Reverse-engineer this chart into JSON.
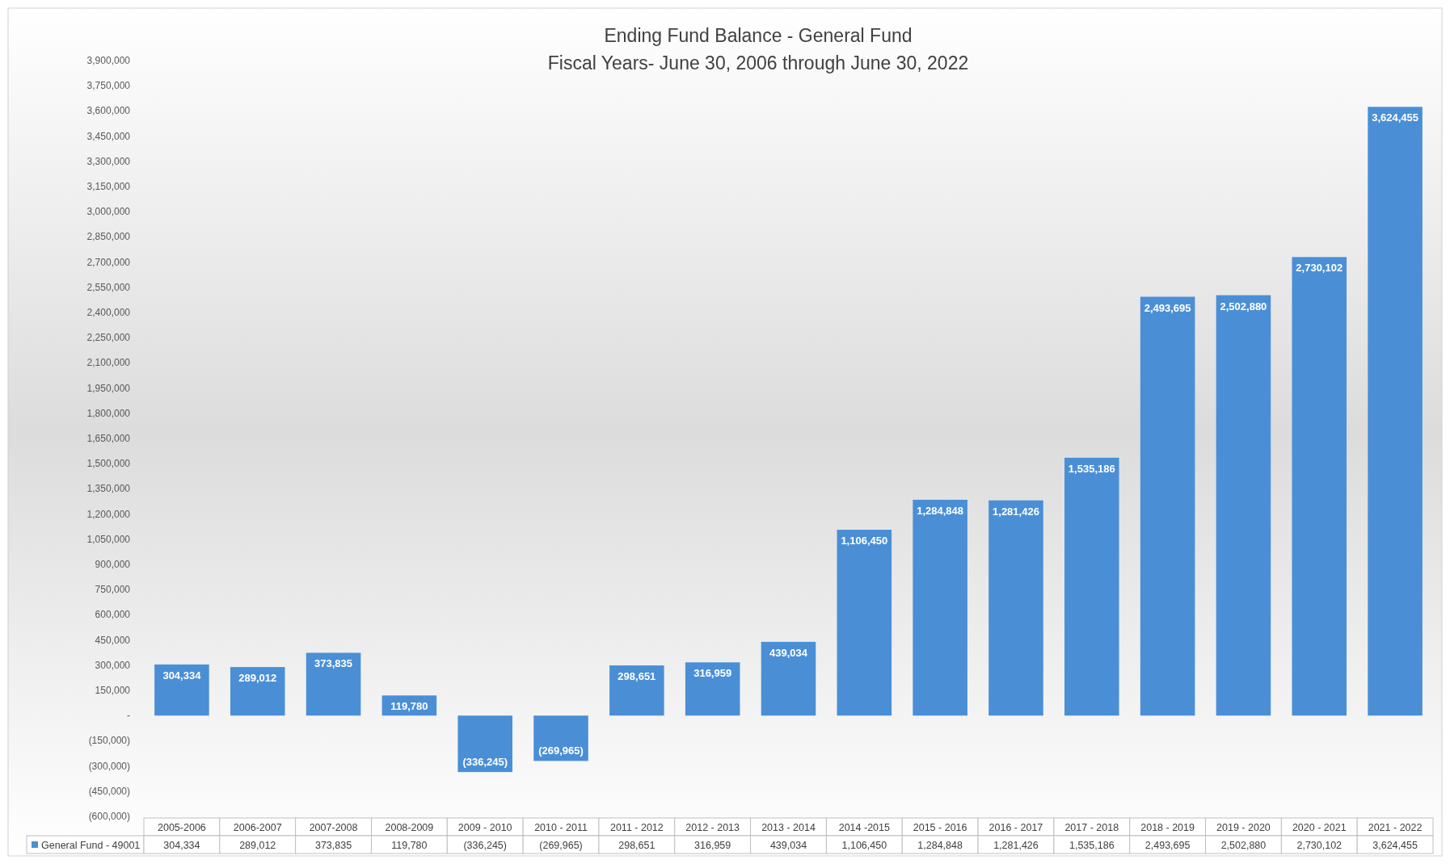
{
  "chart_data": {
    "type": "bar",
    "title": "Ending Fund Balance - General Fund",
    "subtitle": "Fiscal Years- June 30, 2006 through June 30, 2022",
    "categories": [
      "2005-2006",
      "2006-2007",
      "2007-2008",
      "2008-2009",
      "2009 - 2010",
      "2010 - 2011",
      "2011 - 2012",
      "2012 - 2013",
      "2013 - 2014",
      "2014 -2015",
      "2015 - 2016",
      "2016 - 2017",
      "2017 - 2018",
      "2018 - 2019",
      "2019 - 2020",
      "2020 - 2021",
      "2021 - 2022"
    ],
    "series": [
      {
        "name": "General Fund - 49001",
        "color": "#4a8fd6",
        "values": [
          304334,
          289012,
          373835,
          119780,
          -336245,
          -269965,
          298651,
          316959,
          439034,
          1106450,
          1284848,
          1281426,
          1535186,
          2493695,
          2502880,
          2730102,
          3624455
        ],
        "value_labels": [
          "304,334",
          "289,012",
          "373,835",
          "119,780",
          "(336,245)",
          "(269,965)",
          "298,651",
          "316,959",
          "439,034",
          "1,106,450",
          "1,284,848",
          "1,281,426",
          "1,535,186",
          "2,493,695",
          "2,502,880",
          "2,730,102",
          "3,624,455"
        ]
      }
    ],
    "ylim": [
      -600000,
      3900000
    ],
    "yticks": [
      {
        "value": 3900000,
        "label": "3,900,000"
      },
      {
        "value": 3750000,
        "label": "3,750,000"
      },
      {
        "value": 3600000,
        "label": "3,600,000"
      },
      {
        "value": 3450000,
        "label": "3,450,000"
      },
      {
        "value": 3300000,
        "label": "3,300,000"
      },
      {
        "value": 3150000,
        "label": "3,150,000"
      },
      {
        "value": 3000000,
        "label": "3,000,000"
      },
      {
        "value": 2850000,
        "label": "2,850,000"
      },
      {
        "value": 2700000,
        "label": "2,700,000"
      },
      {
        "value": 2550000,
        "label": "2,550,000"
      },
      {
        "value": 2400000,
        "label": "2,400,000"
      },
      {
        "value": 2250000,
        "label": "2,250,000"
      },
      {
        "value": 2100000,
        "label": "2,100,000"
      },
      {
        "value": 1950000,
        "label": "1,950,000"
      },
      {
        "value": 1800000,
        "label": "1,800,000"
      },
      {
        "value": 1650000,
        "label": "1,650,000"
      },
      {
        "value": 1500000,
        "label": "1,500,000"
      },
      {
        "value": 1350000,
        "label": "1,350,000"
      },
      {
        "value": 1200000,
        "label": "1,200,000"
      },
      {
        "value": 1050000,
        "label": "1,050,000"
      },
      {
        "value": 900000,
        "label": "900,000"
      },
      {
        "value": 750000,
        "label": "750,000"
      },
      {
        "value": 600000,
        "label": "600,000"
      },
      {
        "value": 450000,
        "label": "450,000"
      },
      {
        "value": 300000,
        "label": "300,000"
      },
      {
        "value": 150000,
        "label": "150,000"
      },
      {
        "value": 0,
        "label": "-"
      },
      {
        "value": -150000,
        "label": "(150,000)"
      },
      {
        "value": -300000,
        "label": "(300,000)"
      },
      {
        "value": -450000,
        "label": "(450,000)"
      },
      {
        "value": -600000,
        "label": "(600,000)"
      }
    ],
    "legend": "bottom"
  }
}
